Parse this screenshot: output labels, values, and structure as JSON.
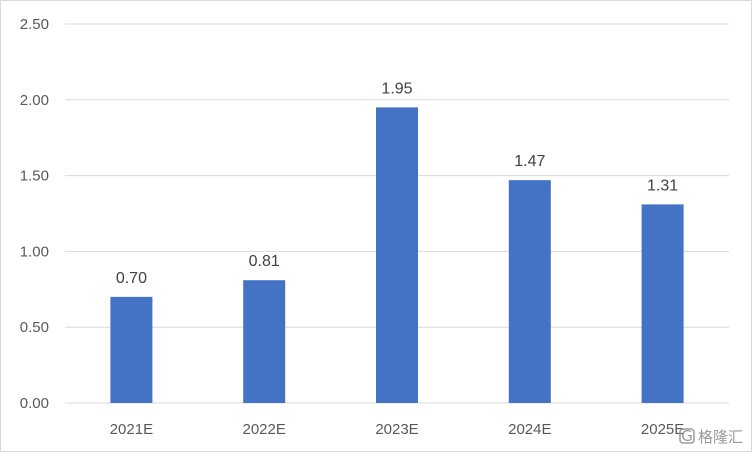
{
  "chart_data": {
    "type": "bar",
    "categories": [
      "2021E",
      "2022E",
      "2023E",
      "2024E",
      "2025E"
    ],
    "values": [
      0.7,
      0.81,
      1.95,
      1.47,
      1.31
    ],
    "data_labels": [
      "0.70",
      "0.81",
      "1.95",
      "1.47",
      "1.31"
    ],
    "ylim": [
      0,
      2.5
    ],
    "yticks": [
      "0.00",
      "0.50",
      "1.00",
      "1.50",
      "2.00",
      "2.50"
    ],
    "title": "",
    "xlabel": "",
    "ylabel": "",
    "grid": true,
    "legend": "none",
    "colors": {
      "bar": "#4472C4",
      "grid": "#d9d9d9"
    }
  },
  "watermark": {
    "text": "格隆汇",
    "icon": "g-logo-icon"
  }
}
